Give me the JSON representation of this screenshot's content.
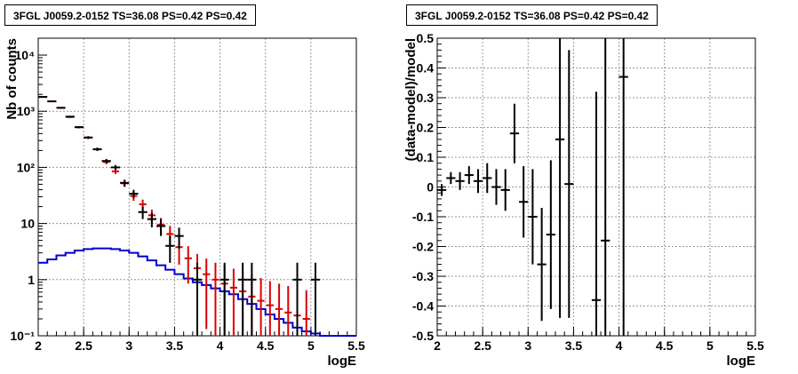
{
  "chart_data": [
    {
      "type": "line",
      "title": "3FGL J0059.2-0152 TS=36.08 PS=0.42 PS=0.42",
      "xlabel": "logE",
      "ylabel": "Nb of counts",
      "xlim": [
        2,
        5.5
      ],
      "ylim": [
        0.1,
        20000
      ],
      "yscale": "log",
      "grid": true,
      "xticks": [
        "2",
        "2.5",
        "3",
        "3.5",
        "4",
        "4.5",
        "5",
        "5.5"
      ],
      "yticks": [
        "10⁻¹",
        "1",
        "10",
        "10²",
        "10³",
        "10⁴"
      ],
      "series": [
        {
          "color": "#000000",
          "style": "points",
          "x": [
            2.05,
            2.15,
            2.25,
            2.35,
            2.45,
            2.55,
            2.65,
            2.75,
            2.85,
            2.95,
            3.05,
            3.15,
            3.25,
            3.35,
            3.45,
            3.55,
            3.75,
            4.05,
            4.25,
            4.35,
            4.85,
            5.05
          ],
          "y": [
            1800,
            1500,
            1150,
            800,
            520,
            340,
            210,
            130,
            100,
            53,
            34,
            16,
            12,
            9,
            4,
            6,
            1,
            1,
            1,
            1,
            1,
            1
          ]
        },
        {
          "color": "#dd0000",
          "style": "points",
          "x": [
            2.05,
            2.15,
            2.25,
            2.35,
            2.45,
            2.55,
            2.65,
            2.75,
            2.85,
            2.95,
            3.05,
            3.15,
            3.25,
            3.35,
            3.45,
            3.55,
            3.65,
            3.75,
            3.85,
            3.95,
            4.05,
            4.15,
            4.25,
            4.35,
            4.45,
            4.55,
            4.65,
            4.75,
            4.85,
            4.95
          ],
          "y": [
            1800,
            1500,
            1150,
            790,
            520,
            340,
            210,
            125,
            85,
            52,
            31,
            22,
            14,
            9.5,
            6.5,
            3.8,
            2.4,
            1.6,
            1.25,
            1.0,
            0.85,
            0.72,
            0.62,
            0.5,
            0.42,
            0.35,
            0.3,
            0.26,
            0.23,
            0.2
          ]
        },
        {
          "color": "#0000cc",
          "style": "histogram",
          "x": [
            2.0,
            2.1,
            2.2,
            2.3,
            2.4,
            2.5,
            2.6,
            2.7,
            2.8,
            2.9,
            3.0,
            3.1,
            3.2,
            3.3,
            3.4,
            3.5,
            3.6,
            3.7,
            3.8,
            3.9,
            4.0,
            4.1,
            4.2,
            4.3,
            4.4,
            4.5,
            4.6,
            4.7,
            4.8,
            4.9,
            5.0,
            5.1,
            5.2,
            5.3,
            5.4
          ],
          "y": [
            2.0,
            2.3,
            2.7,
            3.0,
            3.3,
            3.5,
            3.6,
            3.6,
            3.5,
            3.3,
            3.0,
            2.6,
            2.2,
            1.8,
            1.5,
            1.25,
            1.05,
            0.9,
            0.8,
            0.7,
            0.62,
            0.55,
            0.45,
            0.37,
            0.3,
            0.24,
            0.2,
            0.17,
            0.14,
            0.12,
            0.11,
            0.1,
            0.1,
            0.1,
            0.1
          ]
        }
      ]
    },
    {
      "type": "scatter",
      "title": "3FGL J0059.2-0152 TS=36.08 PS=0.42 PS=0.42",
      "xlabel": "logE",
      "ylabel": "(data-model)/model",
      "xlim": [
        2,
        5.5
      ],
      "ylim": [
        -0.5,
        0.5
      ],
      "grid": true,
      "xticks": [
        "2",
        "2.5",
        "3",
        "3.5",
        "4",
        "4.5",
        "5",
        "5.5"
      ],
      "yticks": [
        "-0.5",
        "-0.4",
        "-0.3",
        "-0.2",
        "-0.1",
        "0",
        "0.1",
        "0.2",
        "0.3",
        "0.4",
        "0.5"
      ],
      "series": [
        {
          "color": "#000000",
          "x": [
            2.05,
            2.15,
            2.25,
            2.35,
            2.45,
            2.55,
            2.65,
            2.75,
            2.85,
            2.95,
            3.05,
            3.15,
            3.25,
            3.35,
            3.45,
            3.75,
            3.85,
            4.05
          ],
          "y": [
            -0.01,
            0.03,
            0.02,
            0.04,
            0.02,
            0.03,
            0.0,
            -0.01,
            0.18,
            -0.05,
            -0.1,
            -0.26,
            -0.16,
            0.16,
            0.01,
            -0.38,
            -0.18,
            0.37
          ],
          "err": [
            0.02,
            0.02,
            0.03,
            0.03,
            0.04,
            0.05,
            0.06,
            0.07,
            0.1,
            0.12,
            0.16,
            0.19,
            0.25,
            0.6,
            0.45,
            0.7,
            0.9,
            0.9
          ]
        }
      ]
    }
  ]
}
